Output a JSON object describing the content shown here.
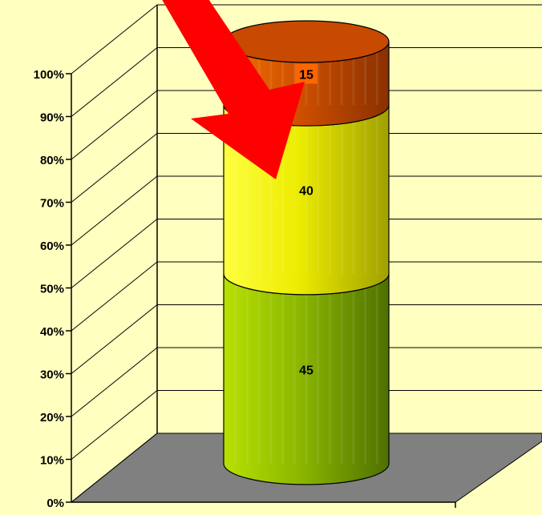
{
  "chart_data": {
    "type": "bar",
    "subtype": "stacked-100-percent-3d-cylinder",
    "categories": [
      ""
    ],
    "series": [
      {
        "values": [
          45
        ],
        "color": "#8cb800"
      },
      {
        "values": [
          40
        ],
        "color": "#f2f200"
      },
      {
        "values": [
          15
        ],
        "color": "#d05000"
      }
    ],
    "data_labels": [
      "45",
      "40",
      "15"
    ],
    "ylim": [
      0,
      100
    ],
    "y_ticks": [
      "0%",
      "10%",
      "20%",
      "30%",
      "40%",
      "50%",
      "60%",
      "70%",
      "80%",
      "90%",
      "100%"
    ],
    "grid": true,
    "legend": "none",
    "annotation": "red-arrow",
    "colors": {
      "background": "#ffffc0",
      "floor": "#808080",
      "gridline": "#000000",
      "arrow": "#ff0000",
      "label_box": "#ff6600"
    }
  }
}
